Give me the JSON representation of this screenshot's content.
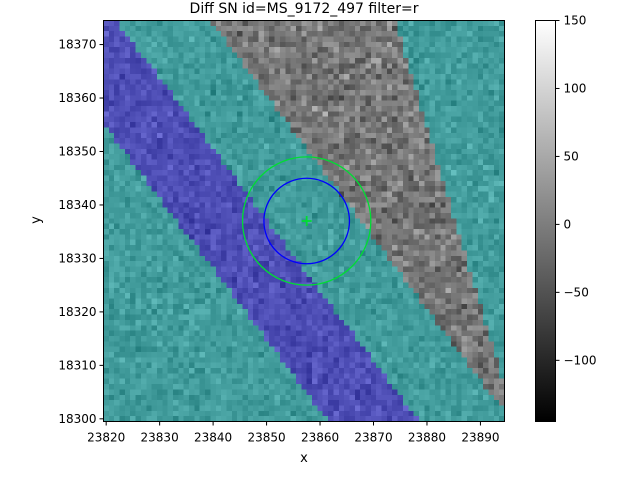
{
  "chart_data": {
    "type": "heatmap",
    "title": "Diff SN id=MS_9172_497 filter=r",
    "xlabel": "x",
    "ylabel": "y",
    "xlim": [
      23819.5,
      23894.5
    ],
    "ylim": [
      18299.5,
      18374.5
    ],
    "xticks": [
      23820,
      23830,
      23840,
      23850,
      23860,
      23870,
      23880,
      23890
    ],
    "yticks": [
      18300,
      18310,
      18320,
      18330,
      18340,
      18350,
      18360,
      18370
    ],
    "grid": false,
    "colorbar": {
      "cmap": "gray",
      "vmin": -145,
      "vmax": 150,
      "ticks": [
        -100,
        -50,
        0,
        50,
        100,
        150
      ]
    },
    "overlays": {
      "masks": [
        {
          "name": "cyan mask",
          "color": "#00c8c8",
          "alpha": 0.45
        },
        {
          "name": "blue band mask",
          "color": "#1a1aff",
          "alpha": 0.45
        }
      ],
      "circles": [
        {
          "center": [
            23857.5,
            18337
          ],
          "radius": 8,
          "color": "#0000ff"
        },
        {
          "center": [
            23857.5,
            18337
          ],
          "radius": 12,
          "color": "#00dd33"
        }
      ],
      "marker": {
        "shape": "+",
        "at": [
          23857.5,
          18337
        ],
        "color": "#00dd33"
      }
    }
  }
}
